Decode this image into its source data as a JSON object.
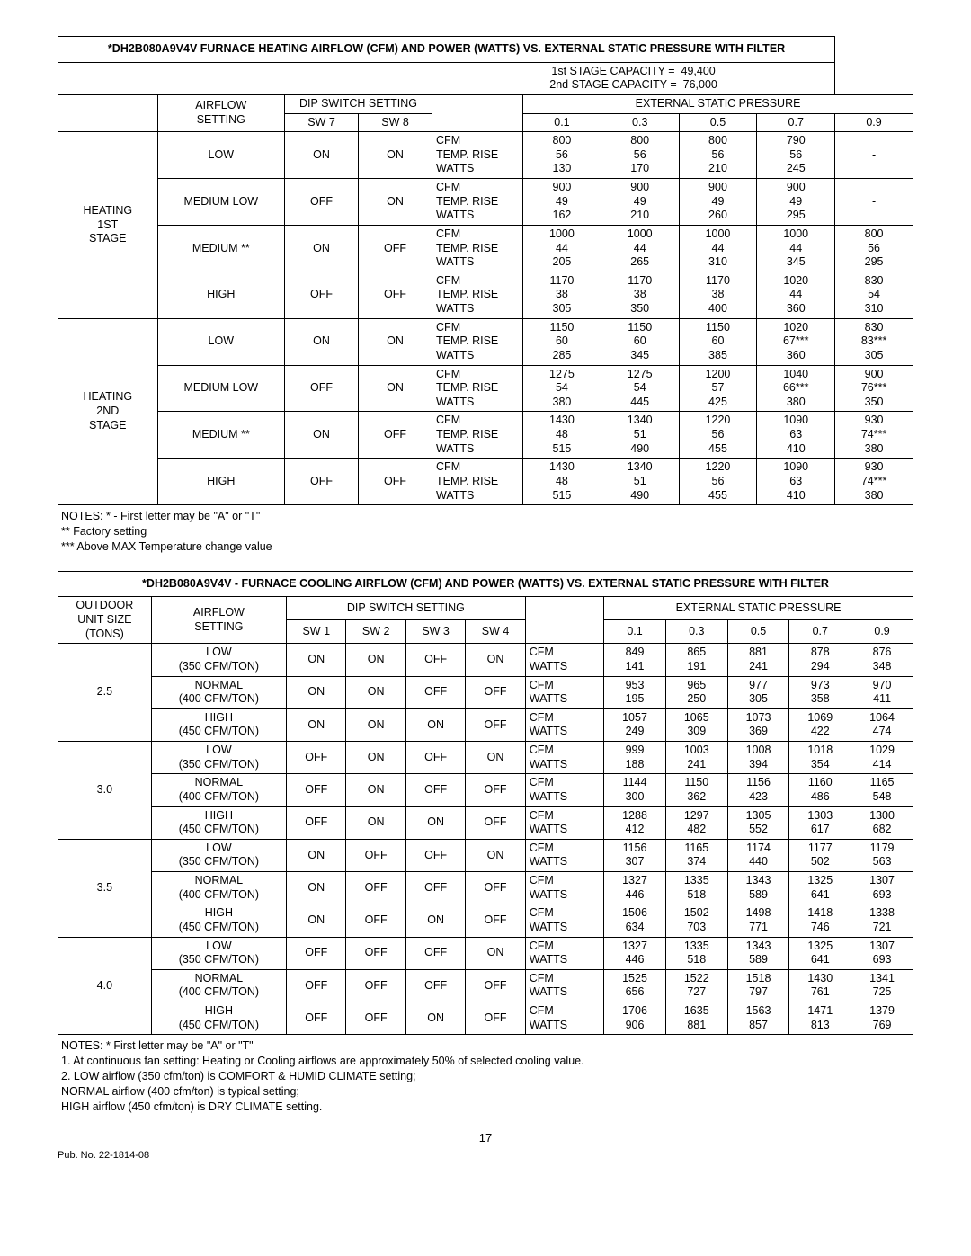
{
  "heating_table": {
    "title": "*DH2B080A9V4V FURNACE HEATING AIRFLOW (CFM) AND POWER (WATTS) VS. EXTERNAL STATIC PRESSURE WITH FILTER",
    "stage1_cap_label": "1st STAGE CAPACITY =",
    "stage1_cap_val": "49,400",
    "stage2_cap_label": "2nd STAGE CAPACITY =",
    "stage2_cap_val": "76,000",
    "airflow_label": "AIRFLOW\nSETTING",
    "dip_label": "DIP SWITCH SETTING",
    "sw7": "SW 7",
    "sw8": "SW 8",
    "esp_label": "EXTERNAL STATIC PRESSURE",
    "esp_cols": [
      "0.1",
      "0.3",
      "0.5",
      "0.7",
      "0.9"
    ],
    "metric_labels": [
      "CFM",
      "TEMP. RISE",
      "WATTS"
    ],
    "stages": [
      {
        "name": "HEATING\n1ST\nSTAGE",
        "rows": [
          {
            "setting": "LOW",
            "sw7": "ON",
            "sw8": "ON",
            "data": [
              [
                "800",
                "56",
                "130"
              ],
              [
                "800",
                "56",
                "170"
              ],
              [
                "800",
                "56",
                "210"
              ],
              [
                "790",
                "56",
                "245"
              ],
              [
                "-",
                "",
                "-"
              ]
            ]
          },
          {
            "setting": "MEDIUM LOW",
            "sw7": "OFF",
            "sw8": "ON",
            "data": [
              [
                "900",
                "49",
                "162"
              ],
              [
                "900",
                "49",
                "210"
              ],
              [
                "900",
                "49",
                "260"
              ],
              [
                "900",
                "49",
                "295"
              ],
              [
                "-",
                "",
                "-"
              ]
            ]
          },
          {
            "setting": "MEDIUM **",
            "sw7": "ON",
            "sw8": "OFF",
            "data": [
              [
                "1000",
                "44",
                "205"
              ],
              [
                "1000",
                "44",
                "265"
              ],
              [
                "1000",
                "44",
                "310"
              ],
              [
                "1000",
                "44",
                "345"
              ],
              [
                "800",
                "56",
                "295"
              ]
            ]
          },
          {
            "setting": "HIGH",
            "sw7": "OFF",
            "sw8": "OFF",
            "data": [
              [
                "1170",
                "38",
                "305"
              ],
              [
                "1170",
                "38",
                "350"
              ],
              [
                "1170",
                "38",
                "400"
              ],
              [
                "1020",
                "44",
                "360"
              ],
              [
                "830",
                "54",
                "310"
              ]
            ]
          }
        ]
      },
      {
        "name": "HEATING\n2ND\nSTAGE",
        "rows": [
          {
            "setting": "LOW",
            "sw7": "ON",
            "sw8": "ON",
            "data": [
              [
                "1150",
                "60",
                "285"
              ],
              [
                "1150",
                "60",
                "345"
              ],
              [
                "1150",
                "60",
                "385"
              ],
              [
                "1020",
                "67***",
                "360"
              ],
              [
                "830",
                "83***",
                "305"
              ]
            ]
          },
          {
            "setting": "MEDIUM LOW",
            "sw7": "OFF",
            "sw8": "ON",
            "data": [
              [
                "1275",
                "54",
                "380"
              ],
              [
                "1275",
                "54",
                "445"
              ],
              [
                "1200",
                "57",
                "425"
              ],
              [
                "1040",
                "66***",
                "380"
              ],
              [
                "900",
                "76***",
                "350"
              ]
            ]
          },
          {
            "setting": "MEDIUM **",
            "sw7": "ON",
            "sw8": "OFF",
            "data": [
              [
                "1430",
                "48",
                "515"
              ],
              [
                "1340",
                "51",
                "490"
              ],
              [
                "1220",
                "56",
                "455"
              ],
              [
                "1090",
                "63",
                "410"
              ],
              [
                "930",
                "74***",
                "380"
              ]
            ]
          },
          {
            "setting": "HIGH",
            "sw7": "OFF",
            "sw8": "OFF",
            "data": [
              [
                "1430",
                "48",
                "515"
              ],
              [
                "1340",
                "51",
                "490"
              ],
              [
                "1220",
                "56",
                "455"
              ],
              [
                "1090",
                "63",
                "410"
              ],
              [
                "930",
                "74***",
                "380"
              ]
            ]
          }
        ]
      }
    ],
    "notes": [
      "NOTES:   *  - First letter may be \"A\" or \"T\"",
      "** Factory setting",
      "*** Above MAX Temperature change value"
    ]
  },
  "cooling_table": {
    "title": "*DH2B080A9V4V - FURNACE COOLING AIRFLOW (CFM) AND POWER (WATTS) VS. EXTERNAL STATIC PRESSURE WITH FILTER",
    "outdoor_label": "OUTDOOR\nUNIT SIZE\n(TONS)",
    "airflow_label": "AIRFLOW\nSETTING",
    "dip_label": "DIP SWITCH SETTING",
    "sw_cols": [
      "SW 1",
      "SW 2",
      "SW 3",
      "SW 4"
    ],
    "esp_label": "EXTERNAL STATIC PRESSURE",
    "esp_cols": [
      "0.1",
      "0.3",
      "0.5",
      "0.7",
      "0.9"
    ],
    "metric_labels": [
      "CFM",
      "WATTS"
    ],
    "groups": [
      {
        "size": "2.5",
        "rows": [
          {
            "setting": "LOW\n(350 CFM/TON)",
            "sw": [
              "ON",
              "ON",
              "OFF",
              "ON"
            ],
            "data": [
              [
                "849",
                "141"
              ],
              [
                "865",
                "191"
              ],
              [
                "881",
                "241"
              ],
              [
                "878",
                "294"
              ],
              [
                "876",
                "348"
              ]
            ]
          },
          {
            "setting": "NORMAL\n(400 CFM/TON)",
            "sw": [
              "ON",
              "ON",
              "OFF",
              "OFF"
            ],
            "data": [
              [
                "953",
                "195"
              ],
              [
                "965",
                "250"
              ],
              [
                "977",
                "305"
              ],
              [
                "973",
                "358"
              ],
              [
                "970",
                "411"
              ]
            ]
          },
          {
            "setting": "HIGH\n(450 CFM/TON)",
            "sw": [
              "ON",
              "ON",
              "ON",
              "OFF"
            ],
            "data": [
              [
                "1057",
                "249"
              ],
              [
                "1065",
                "309"
              ],
              [
                "1073",
                "369"
              ],
              [
                "1069",
                "422"
              ],
              [
                "1064",
                "474"
              ]
            ]
          }
        ]
      },
      {
        "size": "3.0",
        "rows": [
          {
            "setting": "LOW\n(350 CFM/TON)",
            "sw": [
              "OFF",
              "ON",
              "OFF",
              "ON"
            ],
            "data": [
              [
                "999",
                "188"
              ],
              [
                "1003",
                "241"
              ],
              [
                "1008",
                "394"
              ],
              [
                "1018",
                "354"
              ],
              [
                "1029",
                "414"
              ]
            ]
          },
          {
            "setting": "NORMAL\n(400 CFM/TON)",
            "sw": [
              "OFF",
              "ON",
              "OFF",
              "OFF"
            ],
            "data": [
              [
                "1144",
                "300"
              ],
              [
                "1150",
                "362"
              ],
              [
                "1156",
                "423"
              ],
              [
                "1160",
                "486"
              ],
              [
                "1165",
                "548"
              ]
            ]
          },
          {
            "setting": "HIGH\n(450 CFM/TON)",
            "sw": [
              "OFF",
              "ON",
              "ON",
              "OFF"
            ],
            "data": [
              [
                "1288",
                "412"
              ],
              [
                "1297",
                "482"
              ],
              [
                "1305",
                "552"
              ],
              [
                "1303",
                "617"
              ],
              [
                "1300",
                "682"
              ]
            ]
          }
        ]
      },
      {
        "size": "3.5",
        "rows": [
          {
            "setting": "LOW\n(350 CFM/TON)",
            "sw": [
              "ON",
              "OFF",
              "OFF",
              "ON"
            ],
            "data": [
              [
                "1156",
                "307"
              ],
              [
                "1165",
                "374"
              ],
              [
                "1174",
                "440"
              ],
              [
                "1177",
                "502"
              ],
              [
                "1179",
                "563"
              ]
            ]
          },
          {
            "setting": "NORMAL\n(400 CFM/TON)",
            "sw": [
              "ON",
              "OFF",
              "OFF",
              "OFF"
            ],
            "data": [
              [
                "1327",
                "446"
              ],
              [
                "1335",
                "518"
              ],
              [
                "1343",
                "589"
              ],
              [
                "1325",
                "641"
              ],
              [
                "1307",
                "693"
              ]
            ]
          },
          {
            "setting": "HIGH\n(450 CFM/TON)",
            "sw": [
              "ON",
              "OFF",
              "ON",
              "OFF"
            ],
            "data": [
              [
                "1506",
                "634"
              ],
              [
                "1502",
                "703"
              ],
              [
                "1498",
                "771"
              ],
              [
                "1418",
                "746"
              ],
              [
                "1338",
                "721"
              ]
            ]
          }
        ]
      },
      {
        "size": "4.0",
        "rows": [
          {
            "setting": "LOW\n(350 CFM/TON)",
            "sw": [
              "OFF",
              "OFF",
              "OFF",
              "ON"
            ],
            "data": [
              [
                "1327",
                "446"
              ],
              [
                "1335",
                "518"
              ],
              [
                "1343",
                "589"
              ],
              [
                "1325",
                "641"
              ],
              [
                "1307",
                "693"
              ]
            ]
          },
          {
            "setting": "NORMAL\n(400 CFM/TON)",
            "sw": [
              "OFF",
              "OFF",
              "OFF",
              "OFF"
            ],
            "data": [
              [
                "1525",
                "656"
              ],
              [
                "1522",
                "727"
              ],
              [
                "1518",
                "797"
              ],
              [
                "1430",
                "761"
              ],
              [
                "1341",
                "725"
              ]
            ]
          },
          {
            "setting": "HIGH\n(450 CFM/TON)",
            "sw": [
              "OFF",
              "OFF",
              "ON",
              "OFF"
            ],
            "data": [
              [
                "1706",
                "906"
              ],
              [
                "1635",
                "881"
              ],
              [
                "1563",
                "857"
              ],
              [
                "1471",
                "813"
              ],
              [
                "1379",
                "769"
              ]
            ]
          }
        ]
      }
    ],
    "notes": [
      "NOTES:   * First letter may be \"A\" or \"T\"",
      "1. At continuous fan setting: Heating or Cooling airflows are approximately 50% of selected cooling value.",
      "2. LOW airflow (350 cfm/ton) is COMFORT & HUMID CLIMATE setting;",
      "    NORMAL airflow (400 cfm/ton) is typical setting;",
      "    HIGH airflow (450 cfm/ton) is DRY CLIMATE setting."
    ]
  },
  "page_number": "17",
  "pub_no": "Pub. No. 22-1814-08"
}
